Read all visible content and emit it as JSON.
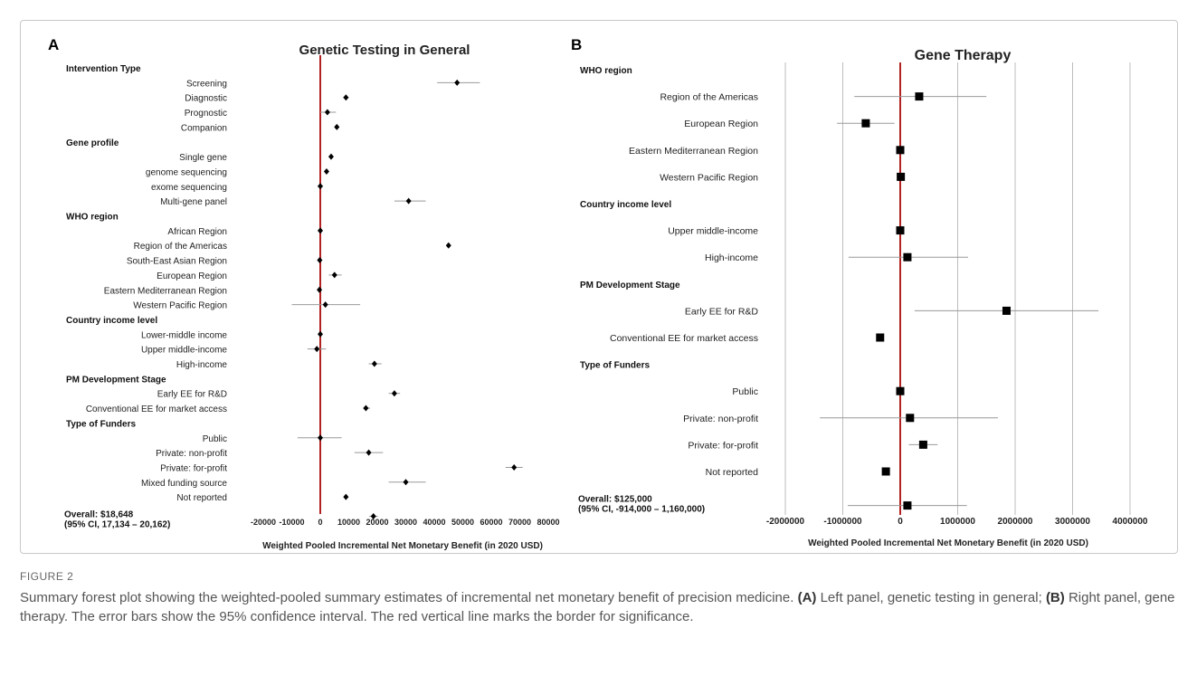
{
  "figure": {
    "label": "FIGURE 2",
    "caption_intro": "Summary forest plot showing the weighted-pooled summary estimates of incremental net monetary benefit of precision medicine.",
    "caption_a_label": "(A)",
    "caption_a_text": "Left panel, genetic testing in general;",
    "caption_b_label": "(B)",
    "caption_b_text": "Right panel, gene therapy. The error bars show the 95% confidence interval. The red vertical line marks the border for significance."
  },
  "colors": {
    "reference_line": "#b22222",
    "marker": "#000000",
    "ci": "#999999",
    "grid": "#bdbdbd"
  },
  "chart_data": [
    {
      "type": "forest",
      "panel_letter": "A",
      "title": "Genetic Testing in General",
      "xlabel": "Weighted Pooled Incremental Net Monetary Benefit (in 2020 USD)",
      "xlim": [
        -20000,
        80000
      ],
      "xticks": [
        -20000,
        -10000,
        0,
        10000,
        20000,
        30000,
        40000,
        50000,
        60000,
        70000,
        80000
      ],
      "reference_x": 0,
      "marker": "diamond",
      "rows": [
        {
          "kind": "header",
          "label": "Intervention Type"
        },
        {
          "kind": "row",
          "label": "Screening",
          "est": 48000,
          "lo": 41000,
          "hi": 56000
        },
        {
          "kind": "row",
          "label": "Diagnostic",
          "est": 9000,
          "lo": 8000,
          "hi": 10000
        },
        {
          "kind": "row",
          "label": "Prognostic",
          "est": 2500,
          "lo": 0,
          "hi": 5500
        },
        {
          "kind": "row",
          "label": "Companion",
          "est": 5800,
          "lo": 5000,
          "hi": 6500
        },
        {
          "kind": "header",
          "label": "Gene profile"
        },
        {
          "kind": "row",
          "label": "Single gene",
          "est": 3800,
          "lo": 3000,
          "hi": 4500
        },
        {
          "kind": "row",
          "label": "genome sequencing",
          "est": 2200,
          "lo": 1500,
          "hi": 3000
        },
        {
          "kind": "row",
          "label": "exome sequencing",
          "est": 0,
          "lo": -1000,
          "hi": 1000
        },
        {
          "kind": "row",
          "label": "Multi-gene panel",
          "est": 31000,
          "lo": 26000,
          "hi": 37000
        },
        {
          "kind": "header",
          "label": "WHO region"
        },
        {
          "kind": "row",
          "label": "African Region",
          "est": 0,
          "lo": -300,
          "hi": 300
        },
        {
          "kind": "row",
          "label": "Region of the Americas",
          "est": 45000,
          "lo": 44500,
          "hi": 45500
        },
        {
          "kind": "row",
          "label": "South-East Asian Region",
          "est": -200,
          "lo": -500,
          "hi": 200
        },
        {
          "kind": "row",
          "label": "European Region",
          "est": 5000,
          "lo": 3000,
          "hi": 7500
        },
        {
          "kind": "row",
          "label": "Eastern Mediterranean Region",
          "est": -300,
          "lo": -700,
          "hi": 200
        },
        {
          "kind": "row",
          "label": "Western Pacific Region",
          "est": 1800,
          "lo": -10000,
          "hi": 14000
        },
        {
          "kind": "header",
          "label": "Country income level"
        },
        {
          "kind": "row",
          "label": "Lower-middle income",
          "est": 0,
          "lo": -300,
          "hi": 300
        },
        {
          "kind": "row",
          "label": "Upper middle-income",
          "est": -1200,
          "lo": -4500,
          "hi": 2000
        },
        {
          "kind": "row",
          "label": "High-income",
          "est": 19000,
          "lo": 17000,
          "hi": 21500
        },
        {
          "kind": "header",
          "label": "PM Development Stage"
        },
        {
          "kind": "row",
          "label": "Early EE for R&D",
          "est": 26000,
          "lo": 24000,
          "hi": 28000
        },
        {
          "kind": "row",
          "label": "Conventional EE for market access",
          "est": 16000,
          "lo": 15000,
          "hi": 17500
        },
        {
          "kind": "header",
          "label": "Type of Funders"
        },
        {
          "kind": "row",
          "label": "Public",
          "est": 0,
          "lo": -8000,
          "hi": 7500
        },
        {
          "kind": "row",
          "label": "Private: non-profit",
          "est": 17000,
          "lo": 12000,
          "hi": 22000
        },
        {
          "kind": "row",
          "label": "Private: for-profit",
          "est": 68000,
          "lo": 65000,
          "hi": 71000
        },
        {
          "kind": "row",
          "label": "Mixed funding source",
          "est": 30000,
          "lo": 24000,
          "hi": 37000
        },
        {
          "kind": "row",
          "label": "Not reported",
          "est": 9000,
          "lo": 8500,
          "hi": 9500
        },
        {
          "kind": "overall",
          "label": "Overall: $18,648",
          "label2": "(95% CI, 17,134 – 20,162)",
          "est": 18648,
          "lo": 17134,
          "hi": 20162
        }
      ]
    },
    {
      "type": "forest",
      "panel_letter": "B",
      "title": "Gene Therapy",
      "xlabel": "Weighted Pooled Incremental Net Monetary Benefit (in 2020 USD)",
      "xlim": [
        -2000000,
        4000000
      ],
      "xticks": [
        -2000000,
        -1000000,
        0,
        1000000,
        2000000,
        3000000,
        4000000
      ],
      "reference_x": 0,
      "marker": "square",
      "rows": [
        {
          "kind": "header",
          "label": "WHO region"
        },
        {
          "kind": "row",
          "label": "Region of the Americas",
          "est": 330000,
          "lo": -800000,
          "hi": 1500000
        },
        {
          "kind": "row",
          "label": "European Region",
          "est": -600000,
          "lo": -1100000,
          "hi": -100000
        },
        {
          "kind": "row",
          "label": "Eastern Mediterranean Region",
          "est": 0,
          "lo": -30000,
          "hi": 30000
        },
        {
          "kind": "row",
          "label": "Western Pacific Region",
          "est": 10000,
          "lo": -50000,
          "hi": 60000
        },
        {
          "kind": "header",
          "label": "Country income level"
        },
        {
          "kind": "row",
          "label": "Upper middle-income",
          "est": 0,
          "lo": -30000,
          "hi": 30000
        },
        {
          "kind": "row",
          "label": "High-income",
          "est": 125000,
          "lo": -900000,
          "hi": 1180000
        },
        {
          "kind": "header",
          "label": "PM Development Stage"
        },
        {
          "kind": "row",
          "label": "Early EE for R&D",
          "est": 1850000,
          "lo": 250000,
          "hi": 3450000
        },
        {
          "kind": "row",
          "label": "Conventional EE for market access",
          "est": -350000,
          "lo": -400000,
          "hi": -300000
        },
        {
          "kind": "header",
          "label": "Type of Funders"
        },
        {
          "kind": "row",
          "label": "Public",
          "est": 0,
          "lo": -30000,
          "hi": 30000
        },
        {
          "kind": "row",
          "label": "Private: non-profit",
          "est": 170000,
          "lo": -1400000,
          "hi": 1700000
        },
        {
          "kind": "row",
          "label": "Private: for-profit",
          "est": 400000,
          "lo": 150000,
          "hi": 650000
        },
        {
          "kind": "row",
          "label": "Not reported",
          "est": -250000,
          "lo": -300000,
          "hi": -200000
        },
        {
          "kind": "overall",
          "label": "Overall: $125,000",
          "label2": "(95% CI, -914,000 – 1,160,000)",
          "est": 125000,
          "lo": -914000,
          "hi": 1160000
        }
      ]
    }
  ]
}
